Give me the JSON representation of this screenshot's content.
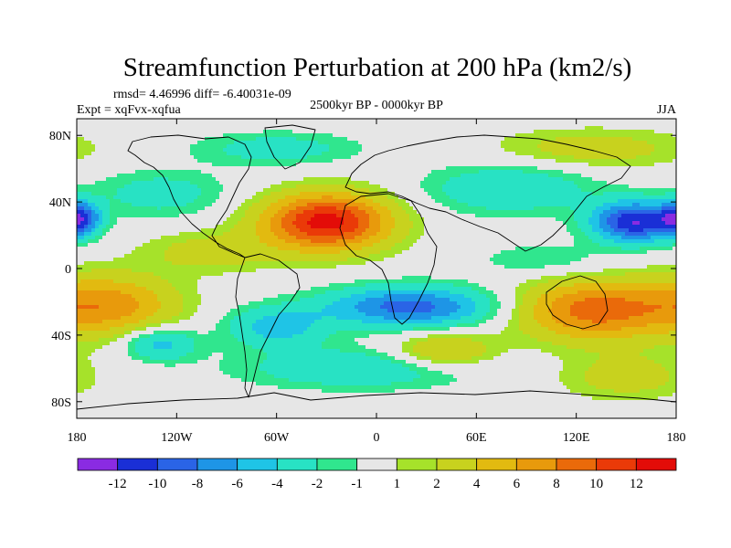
{
  "chart_data": {
    "type": "heatmap",
    "title": "Streamfunction Perturbation at 200 hPa (km2/s)",
    "stats_text": "rmsd= 4.46996 diff= -6.40031e-09",
    "experiment_text": "Expt = xqFvx-xqfua",
    "period_text": "2500kyr BP - 0000kyr BP",
    "season_text": "JJA",
    "x_axis": {
      "range": [
        -180,
        180
      ],
      "ticks": [
        {
          "value": -180,
          "label": "180"
        },
        {
          "value": -120,
          "label": "120W"
        },
        {
          "value": -60,
          "label": "60W"
        },
        {
          "value": 0,
          "label": "0"
        },
        {
          "value": 60,
          "label": "60E"
        },
        {
          "value": 120,
          "label": "120E"
        },
        {
          "value": 180,
          "label": "180"
        }
      ]
    },
    "y_axis": {
      "range": [
        -90,
        90
      ],
      "ticks": [
        {
          "value": 80,
          "label": "80N"
        },
        {
          "value": 40,
          "label": "40N"
        },
        {
          "value": 0,
          "label": "0"
        },
        {
          "value": -40,
          "label": "40S"
        },
        {
          "value": -80,
          "label": "80S"
        }
      ]
    },
    "grid": false,
    "legend": "bottom colorbar",
    "colorbar": {
      "bounds": [
        -13,
        -12,
        -10,
        -8,
        -6,
        -4,
        -2,
        -1,
        1,
        2,
        4,
        6,
        8,
        10,
        12,
        13
      ],
      "tick_labels": [
        "-12",
        "-10",
        "-8",
        "-6",
        "-4",
        "-2",
        "-1",
        "1",
        "2",
        "4",
        "6",
        "8",
        "10",
        "12"
      ],
      "colors": [
        "#8a2be2",
        "#1a2fd6",
        "#2a64e6",
        "#1e95e6",
        "#1fc4e6",
        "#28e2c4",
        "#30e68e",
        "#e6e6e6",
        "#a6e22a",
        "#c8d21e",
        "#e2ba10",
        "#e89a0c",
        "#ea6a0a",
        "#ea3a08",
        "#e30c08"
      ]
    },
    "field_features": [
      {
        "lon": -30,
        "lat": 28,
        "lon_radius": 38,
        "lat_radius": 17,
        "value": 13
      },
      {
        "lon": 155,
        "lat": 28,
        "lon_radius": 25,
        "lat_radius": 12,
        "value": -12
      },
      {
        "lon": -178,
        "lat": 30,
        "lon_radius": 12,
        "lat_radius": 10,
        "value": -9
      },
      {
        "lon": 20,
        "lat": -23,
        "lon_radius": 50,
        "lat_radius": 12,
        "value": -9
      },
      {
        "lon": 130,
        "lat": -25,
        "lon_radius": 45,
        "lat_radius": 18,
        "value": 9
      },
      {
        "lon": -160,
        "lat": -22,
        "lon_radius": 40,
        "lat_radius": 18,
        "value": 7
      },
      {
        "lon": 40,
        "lat": -50,
        "lon_radius": 30,
        "lat_radius": 11,
        "value": 5
      },
      {
        "lon": -130,
        "lat": 45,
        "lon_radius": 40,
        "lat_radius": 14,
        "value": -3
      },
      {
        "lon": 80,
        "lat": 48,
        "lon_radius": 50,
        "lat_radius": 15,
        "value": -4
      },
      {
        "lon": -130,
        "lat": -45,
        "lon_radius": 22,
        "lat_radius": 10,
        "value": -5
      },
      {
        "lon": -100,
        "lat": 10,
        "lon_radius": 40,
        "lat_radius": 12,
        "value": 3
      },
      {
        "lon": 100,
        "lat": 5,
        "lon_radius": 40,
        "lat_radius": 10,
        "value": -2
      },
      {
        "lon": -10,
        "lat": -60,
        "lon_radius": 70,
        "lat_radius": 12,
        "value": -4
      },
      {
        "lon": 150,
        "lat": -65,
        "lon_radius": 40,
        "lat_radius": 14,
        "value": 3
      },
      {
        "lon": -60,
        "lat": 72,
        "lon_radius": 50,
        "lat_radius": 10,
        "value": -3
      },
      {
        "lon": 130,
        "lat": 72,
        "lon_radius": 60,
        "lat_radius": 12,
        "value": 3
      },
      {
        "lon": -60,
        "lat": -35,
        "lon_radius": 30,
        "lat_radius": 12,
        "value": -5
      }
    ]
  }
}
